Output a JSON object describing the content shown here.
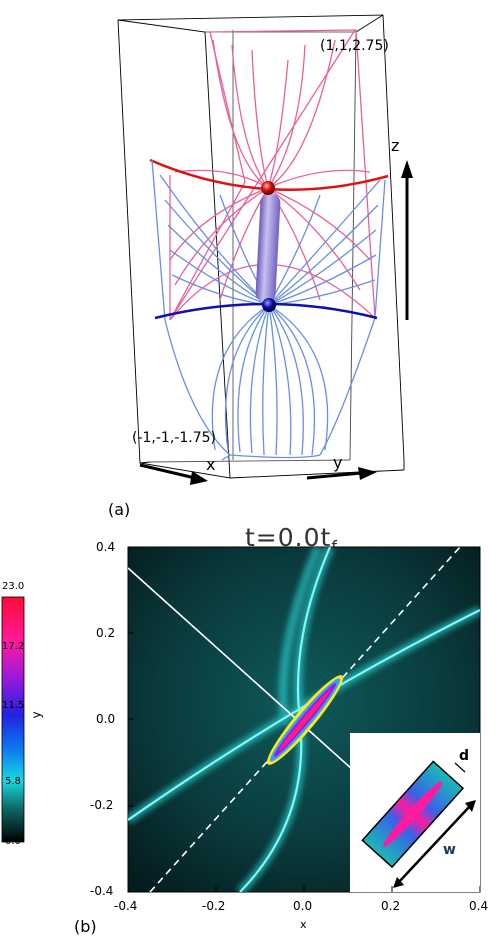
{
  "panel_a": {
    "label": "(a)",
    "corner_top": "(1,1,2.75)",
    "corner_bottom": "(-1,-1,-1.75)",
    "axis_x": "x",
    "axis_y": "y",
    "axis_z": "z"
  },
  "panel_b": {
    "label": "(b)",
    "title": "t=0.0t",
    "title_sub": "f",
    "xlabel": "x",
    "xticks": [
      "-0.4",
      "-0.2",
      "0.0",
      "0.2",
      "0.4"
    ],
    "yticks": [
      "0.4",
      "0.2",
      "0.0",
      "-0.2",
      "-0.4"
    ],
    "colorbar_label": "y",
    "colorbar_ticks": [
      "23.0",
      "17.2",
      "11.5",
      "5.8",
      "0.0"
    ],
    "inset_d": "d",
    "inset_w": "w"
  }
}
